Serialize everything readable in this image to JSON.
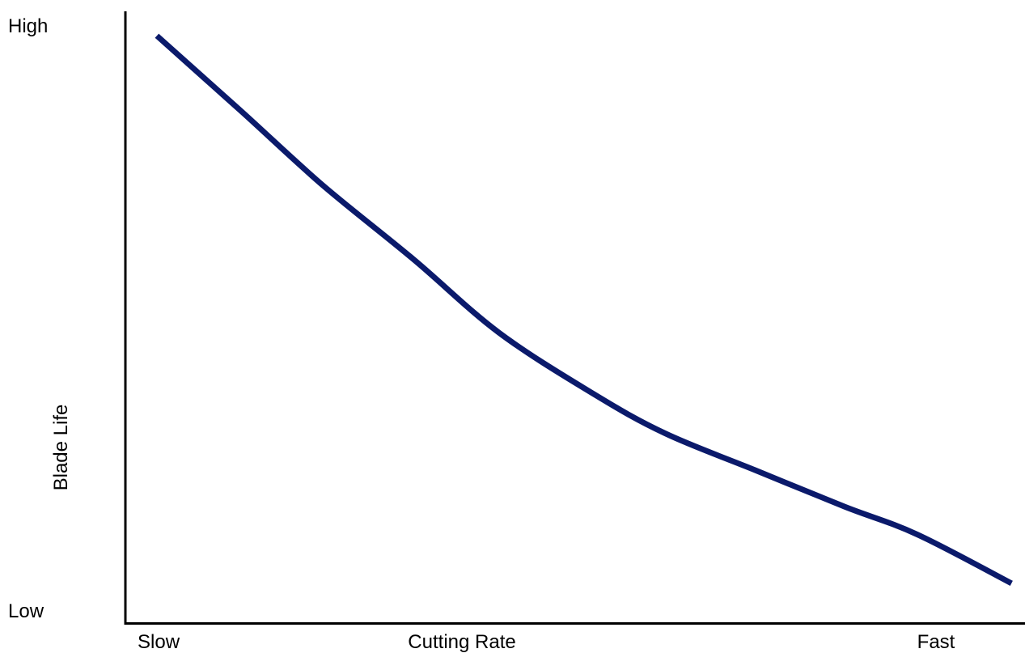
{
  "chart_data": {
    "type": "line",
    "title": "",
    "xlabel": "Cutting Rate",
    "ylabel": "Blade Life",
    "x_tick_labels": {
      "min": "Slow",
      "max": "Fast"
    },
    "y_tick_labels": {
      "min": "Low",
      "max": "High"
    },
    "xlim": [
      0,
      100
    ],
    "ylim": [
      0,
      100
    ],
    "grid": false,
    "legend": "none",
    "line_color": "#0b1a6b",
    "axis_color": "#000000",
    "series": [
      {
        "x": [
          3.5,
          13,
          22,
          32,
          41.5,
          52,
          60,
          70,
          80,
          88,
          98.5
        ],
        "y": [
          96,
          83.5,
          71.5,
          59.5,
          47.5,
          37.5,
          31,
          25,
          19,
          14.5,
          6.5
        ]
      }
    ]
  }
}
